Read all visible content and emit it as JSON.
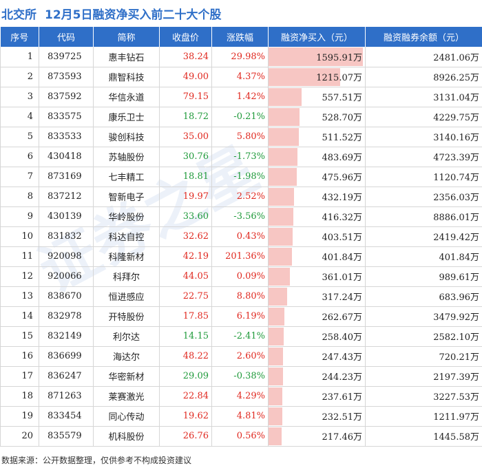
{
  "header": {
    "market": "北交所",
    "title": "12月5日融资净买入前二十大个股"
  },
  "columns": [
    "序号",
    "代码",
    "简称",
    "收盘价",
    "涨跌幅",
    "融资净买入（元）",
    "融资融券余额（元）"
  ],
  "unit_suffix": "万",
  "colors": {
    "accent": "#2f6fc8",
    "up": "#e0281f",
    "down": "#1f9a3a",
    "bar": "#f7c6c3"
  },
  "chart_data": {
    "type": "table",
    "title": "12月5日融资净买入前二十大个股",
    "rows": [
      {
        "idx": "1",
        "code": "839725",
        "name": "惠丰钻石",
        "price": "38.24",
        "chg": "29.98%",
        "net_buy": 1595.91,
        "net_buy_text": "1595.91万",
        "balance": "2481.06万"
      },
      {
        "idx": "2",
        "code": "873593",
        "name": "鼎智科技",
        "price": "49.00",
        "chg": "4.37%",
        "net_buy": 1215.07,
        "net_buy_text": "1215.07万",
        "balance": "8926.25万"
      },
      {
        "idx": "3",
        "code": "837592",
        "name": "华信永道",
        "price": "79.15",
        "chg": "1.42%",
        "net_buy": 557.51,
        "net_buy_text": "557.51万",
        "balance": "3131.04万"
      },
      {
        "idx": "4",
        "code": "833575",
        "name": "康乐卫士",
        "price": "18.72",
        "chg": "-0.21%",
        "net_buy": 528.7,
        "net_buy_text": "528.70万",
        "balance": "4229.75万"
      },
      {
        "idx": "5",
        "code": "833533",
        "name": "骏创科技",
        "price": "35.00",
        "chg": "5.80%",
        "net_buy": 511.52,
        "net_buy_text": "511.52万",
        "balance": "3140.16万"
      },
      {
        "idx": "6",
        "code": "430418",
        "name": "苏轴股份",
        "price": "30.76",
        "chg": "-1.73%",
        "net_buy": 483.69,
        "net_buy_text": "483.69万",
        "balance": "4723.39万"
      },
      {
        "idx": "7",
        "code": "873169",
        "name": "七丰精工",
        "price": "18.81",
        "chg": "-1.98%",
        "net_buy": 475.96,
        "net_buy_text": "475.96万",
        "balance": "1120.74万"
      },
      {
        "idx": "8",
        "code": "837212",
        "name": "智新电子",
        "price": "19.97",
        "chg": "2.52%",
        "net_buy": 432.19,
        "net_buy_text": "432.19万",
        "balance": "2356.03万"
      },
      {
        "idx": "9",
        "code": "430139",
        "name": "华岭股份",
        "price": "33.60",
        "chg": "-3.56%",
        "net_buy": 416.32,
        "net_buy_text": "416.32万",
        "balance": "8886.01万"
      },
      {
        "idx": "10",
        "code": "831832",
        "name": "科达自控",
        "price": "32.62",
        "chg": "0.43%",
        "net_buy": 403.51,
        "net_buy_text": "403.51万",
        "balance": "2419.42万"
      },
      {
        "idx": "11",
        "code": "920098",
        "name": "科隆新材",
        "price": "42.19",
        "chg": "201.36%",
        "net_buy": 401.84,
        "net_buy_text": "401.84万",
        "balance": "401.84万"
      },
      {
        "idx": "12",
        "code": "920066",
        "name": "科拜尔",
        "price": "44.05",
        "chg": "0.09%",
        "net_buy": 361.01,
        "net_buy_text": "361.01万",
        "balance": "989.61万"
      },
      {
        "idx": "13",
        "code": "838670",
        "name": "恒进感应",
        "price": "22.75",
        "chg": "8.80%",
        "net_buy": 317.24,
        "net_buy_text": "317.24万",
        "balance": "683.96万"
      },
      {
        "idx": "14",
        "code": "832978",
        "name": "开特股份",
        "price": "17.85",
        "chg": "6.19%",
        "net_buy": 262.67,
        "net_buy_text": "262.67万",
        "balance": "3479.92万"
      },
      {
        "idx": "15",
        "code": "832149",
        "name": "利尔达",
        "price": "14.15",
        "chg": "-2.41%",
        "net_buy": 258.4,
        "net_buy_text": "258.40万",
        "balance": "2582.10万"
      },
      {
        "idx": "16",
        "code": "836699",
        "name": "海达尔",
        "price": "48.22",
        "chg": "2.60%",
        "net_buy": 247.43,
        "net_buy_text": "247.43万",
        "balance": "720.21万"
      },
      {
        "idx": "17",
        "code": "836247",
        "name": "华密新材",
        "price": "29.09",
        "chg": "-0.38%",
        "net_buy": 244.23,
        "net_buy_text": "244.23万",
        "balance": "2197.39万"
      },
      {
        "idx": "18",
        "code": "871263",
        "name": "莱赛激光",
        "price": "22.84",
        "chg": "4.29%",
        "net_buy": 237.61,
        "net_buy_text": "237.61万",
        "balance": "3227.53万"
      },
      {
        "idx": "19",
        "code": "833454",
        "name": "同心传动",
        "price": "19.62",
        "chg": "4.81%",
        "net_buy": 232.51,
        "net_buy_text": "232.51万",
        "balance": "1211.97万"
      },
      {
        "idx": "20",
        "code": "835579",
        "name": "机科股份",
        "price": "26.76",
        "chg": "0.56%",
        "net_buy": 217.46,
        "net_buy_text": "217.46万",
        "balance": "1445.58万"
      }
    ]
  },
  "footer": {
    "source": "数据来源：公开数据整理，仅供参考不构成投资建议"
  },
  "watermark": {
    "text": "证券之星"
  }
}
